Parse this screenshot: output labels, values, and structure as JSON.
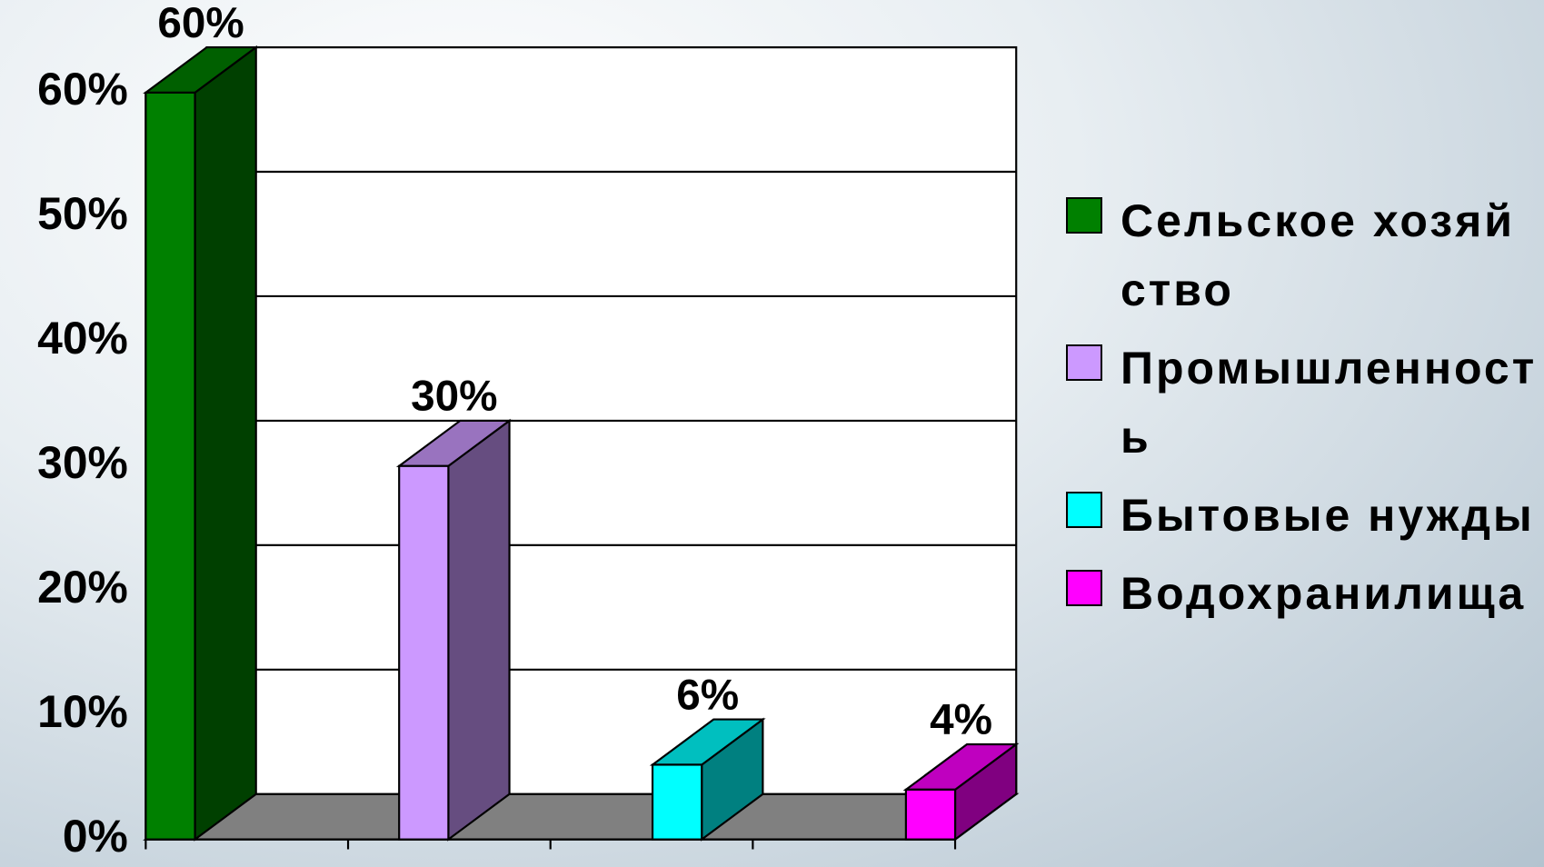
{
  "chart_data": {
    "type": "bar3d",
    "series": [
      {
        "name": "Сельское хозяйство",
        "color": "#008000",
        "values": [
          60
        ],
        "value_labels": [
          "60%"
        ]
      },
      {
        "name": "Промышленность",
        "color": "#cc99ff",
        "values": [
          30
        ],
        "value_labels": [
          "30%"
        ]
      },
      {
        "name": "Бытовые нужды",
        "color": "#00ffff",
        "values": [
          6
        ],
        "value_labels": [
          "6%"
        ]
      },
      {
        "name": "Водохранилища",
        "color": "#ff00ff",
        "values": [
          4
        ],
        "value_labels": [
          "4%"
        ]
      }
    ],
    "ylim": [
      0,
      60
    ],
    "yticks": [
      {
        "value": 0,
        "label": "0%"
      },
      {
        "value": 10,
        "label": "10%"
      },
      {
        "value": 20,
        "label": "20%"
      },
      {
        "value": 30,
        "label": "30%"
      },
      {
        "value": 40,
        "label": "40%"
      },
      {
        "value": 50,
        "label": "50%"
      },
      {
        "value": 60,
        "label": "60%"
      }
    ],
    "grid": true,
    "legend": "right"
  }
}
